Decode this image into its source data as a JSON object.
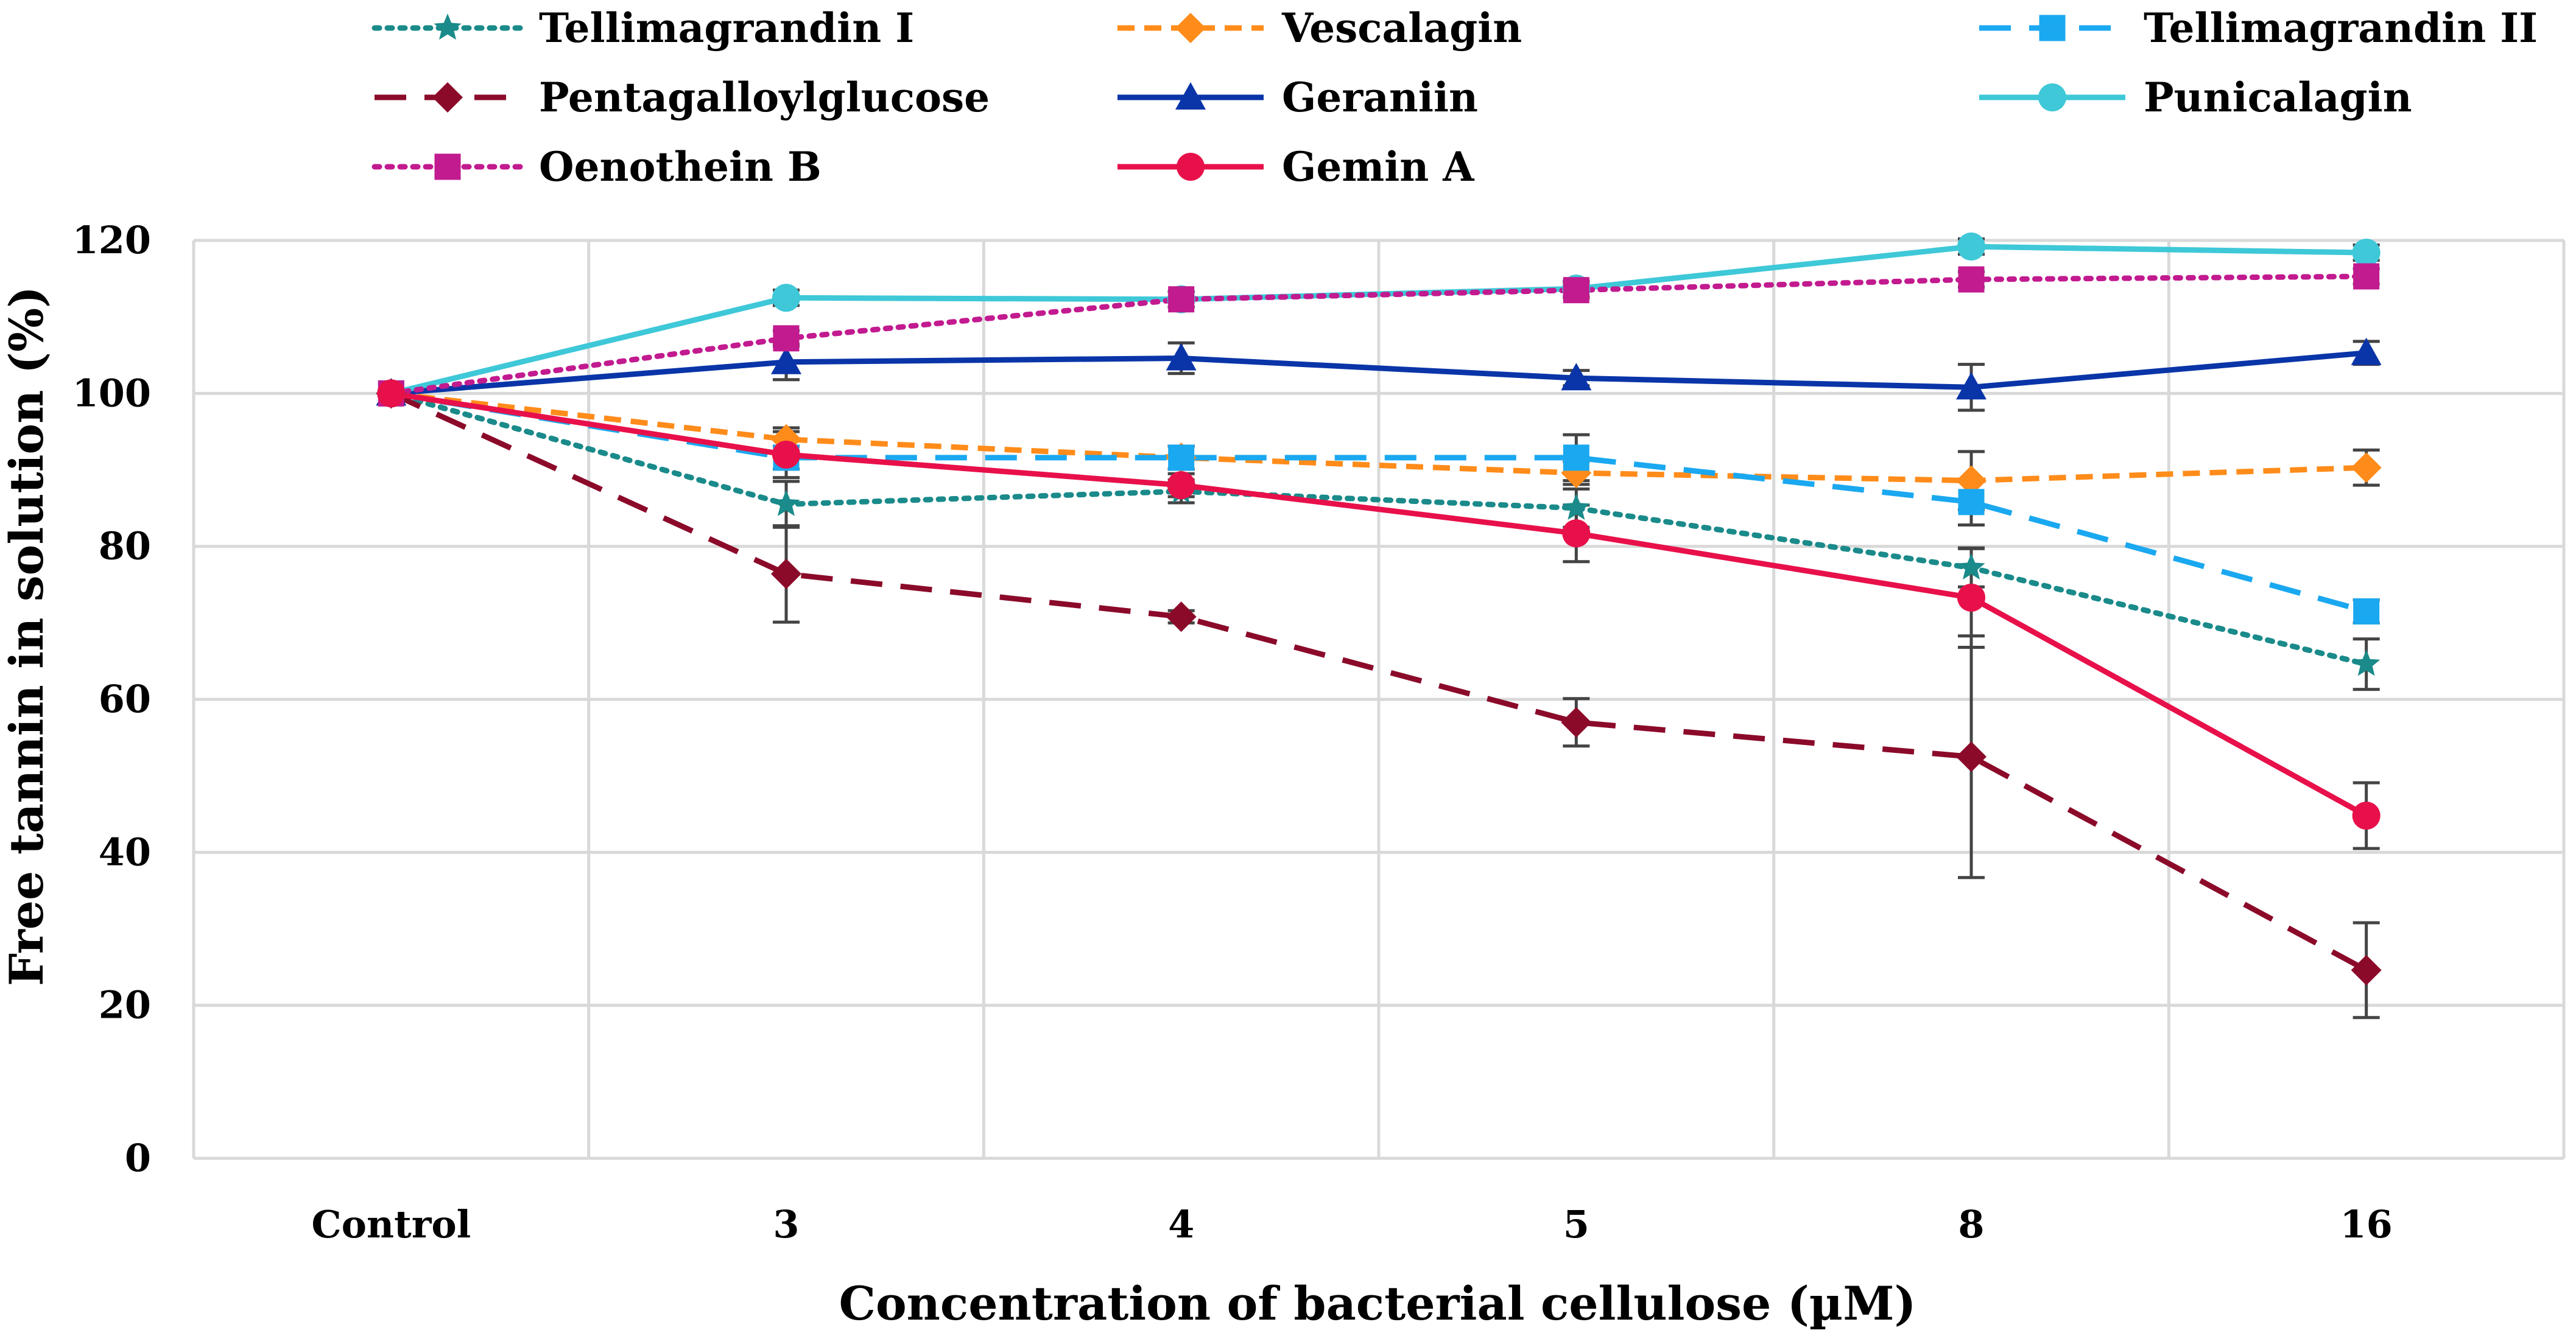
{
  "chart_data": {
    "type": "line",
    "title": "",
    "xlabel": "Concentration of bacterial cellulose (µM)",
    "ylabel": "Free tannin in solution (%)",
    "categories": [
      "Control",
      "3",
      "4",
      "5",
      "8",
      "16"
    ],
    "ylim": [
      0,
      120
    ],
    "yticks": [
      "0",
      "20",
      "40",
      "60",
      "80",
      "100",
      "120"
    ],
    "grid": true,
    "legend_position": "top",
    "series": [
      {
        "name": "Tellimagrandin I",
        "color": "#1a8a8a",
        "dash": "dotted",
        "marker": "star",
        "values": [
          100,
          85.5,
          87.2,
          85,
          77.2,
          64.6
        ],
        "errors": [
          0,
          3,
          1.5,
          2.5,
          2.5,
          3.3
        ]
      },
      {
        "name": "Vescalagin",
        "color": "#ff8c1a",
        "dash": "dashed",
        "marker": "diamond",
        "values": [
          100,
          94,
          91.6,
          89.6,
          88.6,
          90.3
        ],
        "errors": [
          0,
          1.5,
          1.5,
          1.5,
          3.8,
          2.3
        ]
      },
      {
        "name": "Tellimagrandin II",
        "color": "#1aa8f0",
        "dash": "longdash",
        "marker": "square",
        "values": [
          100,
          91.6,
          91.6,
          91.6,
          85.8,
          71.5
        ],
        "errors": [
          0,
          1.5,
          1.5,
          3,
          3,
          1.5
        ]
      },
      {
        "name": "Pentagalloylglucose",
        "color": "#8b0a2a",
        "dash": "longdash",
        "marker": "diamond",
        "values": [
          100,
          76.4,
          70.8,
          57,
          52.5,
          24.6
        ],
        "errors": [
          0,
          6.3,
          0.8,
          3.1,
          15.8,
          6.2
        ]
      },
      {
        "name": "Geraniin",
        "color": "#0a35a8",
        "dash": "solid",
        "marker": "triangle",
        "values": [
          100,
          104.1,
          104.6,
          102,
          100.8,
          105.3
        ],
        "errors": [
          0,
          2.3,
          2,
          1,
          3,
          1.5
        ]
      },
      {
        "name": "Punicalagin",
        "color": "#3ec8d8",
        "dash": "solid",
        "marker": "circle",
        "values": [
          100,
          112.5,
          112.3,
          113.7,
          119.2,
          118.4
        ],
        "errors": [
          0,
          1,
          1,
          1,
          1,
          1
        ]
      },
      {
        "name": "Oenothein B",
        "color": "#c21a8f",
        "dash": "dotted",
        "marker": "square",
        "values": [
          100,
          107.2,
          112.3,
          113.5,
          114.9,
          115.3
        ],
        "errors": [
          0,
          1,
          1,
          1,
          1,
          1
        ]
      },
      {
        "name": "Gemin A",
        "color": "#e8104a",
        "dash": "solid",
        "marker": "circle",
        "values": [
          100,
          92,
          88,
          81.7,
          73.3,
          44.8
        ],
        "errors": [
          0,
          3,
          1.5,
          3.7,
          6.5,
          4.3
        ]
      }
    ]
  }
}
